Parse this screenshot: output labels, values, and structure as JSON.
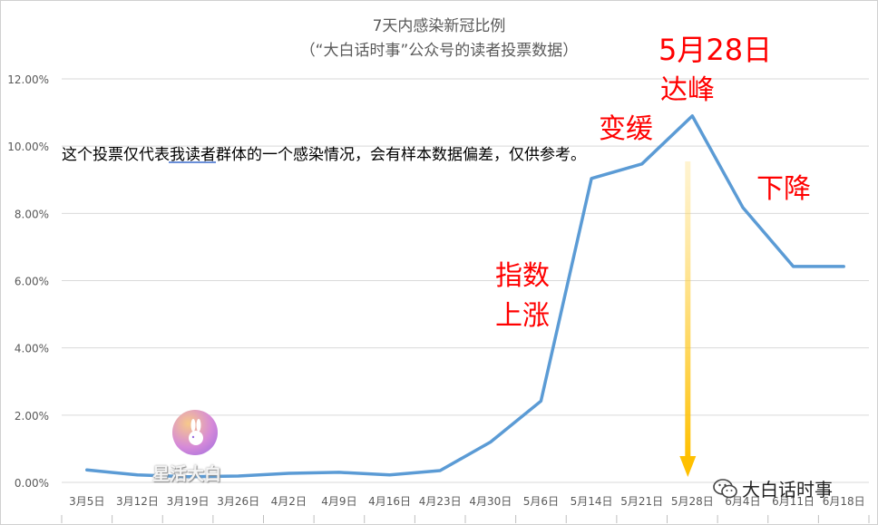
{
  "chart_data": {
    "type": "line",
    "title": "7天内感染新冠比例",
    "subtitle": "（“大白话时事”公众号的读者投票数据）",
    "categories": [
      "3月5日",
      "3月12日",
      "3月19日",
      "3月26日",
      "4月2日",
      "4月9日",
      "4月16日",
      "4月23日",
      "4月30日",
      "5月6日",
      "5月14日",
      "5月21日",
      "5月28日",
      "6月4日",
      "6月11日",
      "6月18日"
    ],
    "series": [
      {
        "values": [
          0.37,
          0.22,
          0.17,
          0.19,
          0.27,
          0.3,
          0.22,
          0.35,
          1.2,
          2.42,
          9.04,
          9.47,
          10.9,
          8.18,
          6.42,
          6.42
        ]
      }
    ],
    "ylim": [
      0,
      12
    ],
    "y_ticks": [
      0,
      2,
      4,
      6,
      8,
      10,
      12
    ],
    "y_tick_labels": [
      "0.00%",
      "2.00%",
      "4.00%",
      "6.00%",
      "8.00%",
      "10.00%",
      "12.00%"
    ],
    "xlabel": "",
    "ylabel": "",
    "grid": true,
    "line_color": "#5b9bd5",
    "annotations": {
      "rise": [
        "指数",
        "上涨"
      ],
      "slow": "变缓",
      "peak_date": "5月28日",
      "peak": "达峰",
      "decline": "下降"
    },
    "annotation_color": "#ff0000",
    "arrow_color": "#ffc000",
    "note": "这个投票仅代表我读者群体的一个感染情况，会有样本数据偏差，仅供参考。"
  },
  "logo": {
    "text": "星活大白"
  },
  "watermark": {
    "text": "大白话时事",
    "icon": "wechat-icon"
  }
}
